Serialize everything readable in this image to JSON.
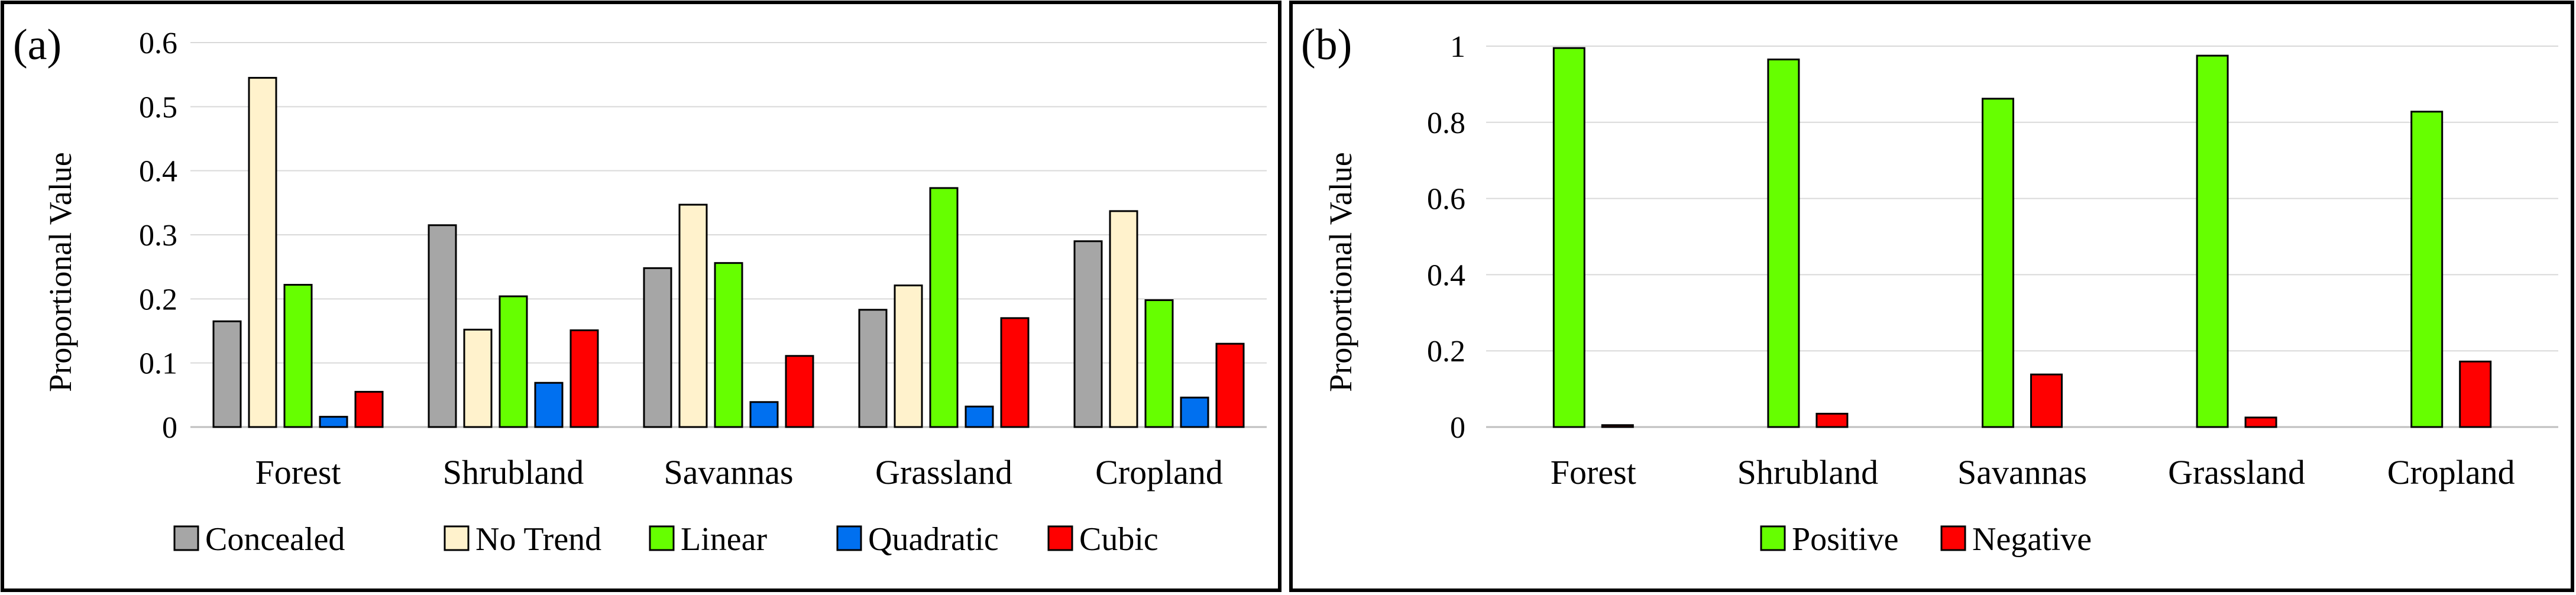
{
  "chart_data": [
    {
      "type": "bar",
      "panel_label": "(a)",
      "ylabel": "Proportional Value",
      "ylim": [
        0,
        0.6
      ],
      "yticks": [
        "0",
        "0.1",
        "0.2",
        "0.3",
        "0.4",
        "0.5",
        "0.6"
      ],
      "categories": [
        "Forest",
        "Shrubland",
        "Savannas",
        "Grassland",
        "Cropland"
      ],
      "legend_position": "bottom",
      "series": [
        {
          "name": "Concealed",
          "color": "#a6a6a6",
          "values": [
            0.165,
            0.315,
            0.248,
            0.183,
            0.29
          ]
        },
        {
          "name": "No Trend",
          "color": "#fff2cc",
          "values": [
            0.545,
            0.152,
            0.347,
            0.221,
            0.337
          ]
        },
        {
          "name": "Linear",
          "color": "#66ff00",
          "values": [
            0.222,
            0.204,
            0.256,
            0.373,
            0.198
          ]
        },
        {
          "name": "Quadratic",
          "color": "#0070f0",
          "values": [
            0.016,
            0.069,
            0.039,
            0.032,
            0.046
          ]
        },
        {
          "name": "Cubic",
          "color": "#ff0000",
          "values": [
            0.055,
            0.151,
            0.111,
            0.17,
            0.13
          ]
        }
      ]
    },
    {
      "type": "bar",
      "panel_label": "(b)",
      "ylabel": "Proportional Value",
      "ylim": [
        0,
        1
      ],
      "yticks": [
        "0",
        "0.2",
        "0.4",
        "0.6",
        "0.8",
        "1"
      ],
      "categories": [
        "Forest",
        "Shrubland",
        "Savannas",
        "Grassland",
        "Cropland"
      ],
      "legend_position": "bottom",
      "series": [
        {
          "name": "Positive",
          "color": "#66ff00",
          "values": [
            0.995,
            0.965,
            0.862,
            0.975,
            0.828
          ]
        },
        {
          "name": "Negative",
          "color": "#ff0000",
          "values": [
            0.005,
            0.035,
            0.138,
            0.025,
            0.172
          ]
        }
      ]
    }
  ]
}
